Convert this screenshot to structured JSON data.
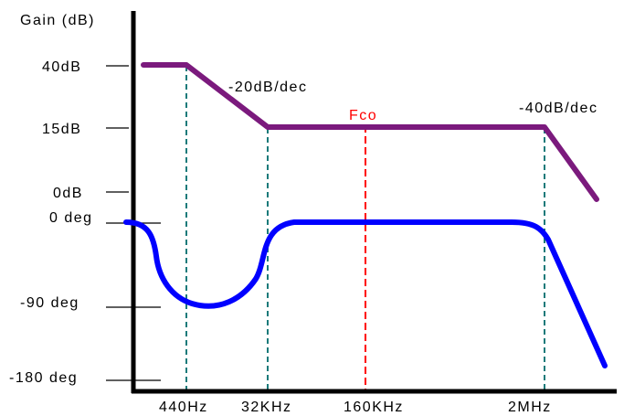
{
  "diagram": {
    "y_axis_title": "Gain (dB)",
    "gain_ticks": [
      "40dB",
      "15dB",
      "0dB"
    ],
    "phase_ticks": [
      "0 deg",
      "-90 deg",
      "-180 deg"
    ],
    "x_ticks": [
      "440Hz",
      "32KHz",
      "160KHz",
      "2MHz"
    ],
    "annotations": {
      "slope_1": "-20dB/dec",
      "slope_2": "-40dB/dec",
      "crossover": "Fco"
    },
    "colors": {
      "gain_curve": "#7b1a7d",
      "phase_curve": "#0000ff",
      "crossover_line": "#ff0000",
      "guide_lines": "#1a7a7a",
      "axes": "#000000"
    }
  }
}
